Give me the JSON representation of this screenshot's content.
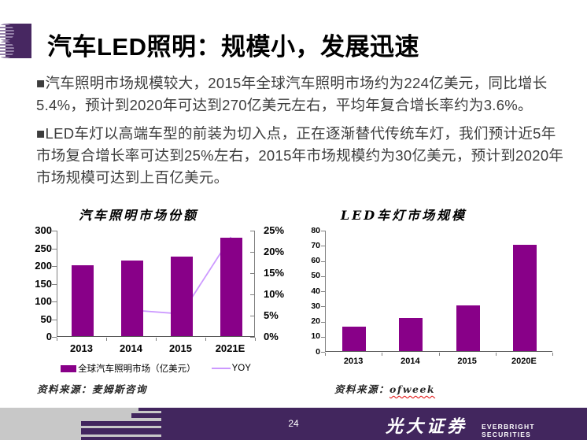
{
  "slide": {
    "title": "汽车LED照明：规模小，发展迅速",
    "bullets": [
      "■汽车照明市场规模较大，2015年全球汽车照明市场约为224亿美元，同比增长5.4%，预计到2020年可达到270亿美元左右，平均年复合增长率约为3.6%。",
      "■LED车灯以高端车型的前装为切入点，正在逐渐替代传统车灯，我们预计近5年市场复合增长率可达到25%左右，2015年市场规模约为30亿美元，预计到2020年市场规模可达到上百亿美元。"
    ]
  },
  "colors": {
    "bar": "#880088",
    "line": "#cc99ff",
    "footer_purple": "#42265e",
    "footer_gray": "#c8c8c8",
    "logo_purple": "#472761",
    "logo_stripe": "#9682aa"
  },
  "chart_data": [
    {
      "type": "bar+line",
      "title": "汽车照明市场份额",
      "categories": [
        "2013",
        "2014",
        "2015",
        "2021E"
      ],
      "series": [
        {
          "name": "全球汽车照明市场（亿美元）",
          "type": "bar",
          "axis": "left",
          "values": [
            200,
            213,
            224,
            277
          ]
        },
        {
          "name": "YOY",
          "type": "line",
          "axis": "right",
          "values": [
            null,
            6.3,
            5.4,
            23.5
          ],
          "unit": "%"
        }
      ],
      "left_axis": {
        "min": 0,
        "max": 300,
        "step": 50,
        "tick_labels": [
          "0",
          "50",
          "100",
          "150",
          "200",
          "250",
          "300"
        ]
      },
      "right_axis": {
        "min": 0,
        "max": 25,
        "step": 5,
        "tick_labels": [
          "0%",
          "5%",
          "10%",
          "15%",
          "20%",
          "25%"
        ]
      },
      "legend_position": "bottom",
      "grid": false,
      "source": "资料来源：麦姆斯咨询"
    },
    {
      "type": "bar",
      "title": "LED车灯市场规模",
      "categories": [
        "2013",
        "2014",
        "2015",
        "2020E"
      ],
      "values": [
        16,
        22,
        30,
        70
      ],
      "yaxis": {
        "min": 0,
        "max": 80,
        "step": 10,
        "tick_labels": [
          "0",
          "10",
          "20",
          "30",
          "40",
          "50",
          "60",
          "70",
          "80"
        ]
      },
      "grid": false,
      "source_label": "资料来源：",
      "source_value": "ofweek"
    }
  ],
  "footer": {
    "page_number": "24",
    "brand_cn": "光大证券",
    "brand_en": "EVERBRIGHT SECURITIES"
  }
}
